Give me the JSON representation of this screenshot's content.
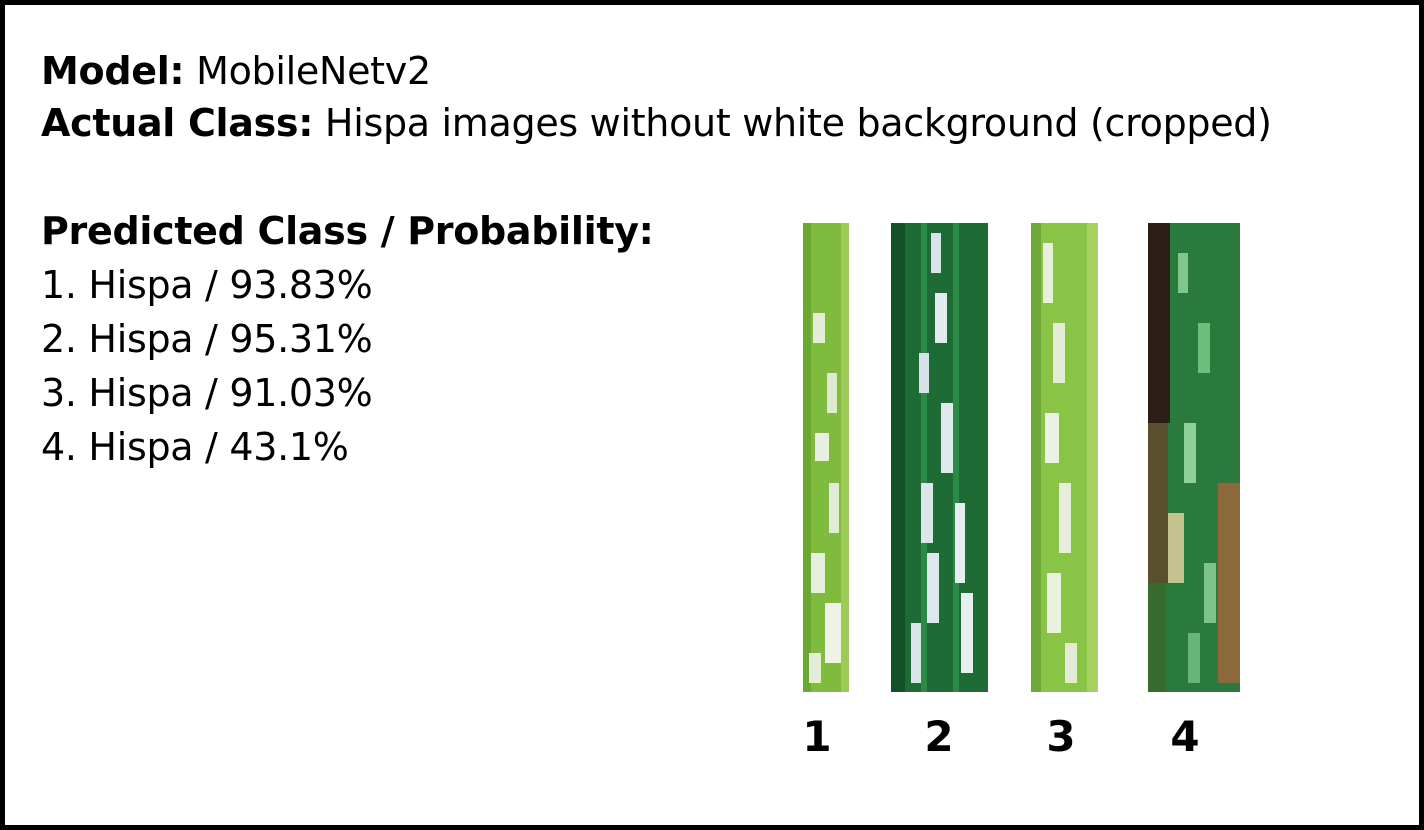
{
  "model": {
    "label": "Model:",
    "value": "MobileNetv2"
  },
  "actual": {
    "label": "Actual Class:",
    "value": "Hispa images without white background (cropped)"
  },
  "predicted": {
    "heading": "Predicted Class / Probability:",
    "items": [
      "1. Hispa / 93.83%",
      "2. Hispa / 95.31%",
      "3. Hispa / 91.03%",
      "4. Hispa / 43.1%"
    ]
  },
  "images": [
    {
      "label": "1",
      "leaf_color": "#7fbb3d"
    },
    {
      "label": "2",
      "leaf_color": "#1f6b35"
    },
    {
      "label": "3",
      "leaf_color": "#8ac447"
    },
    {
      "label": "4",
      "leaf_color": "#2a7a3e"
    }
  ]
}
